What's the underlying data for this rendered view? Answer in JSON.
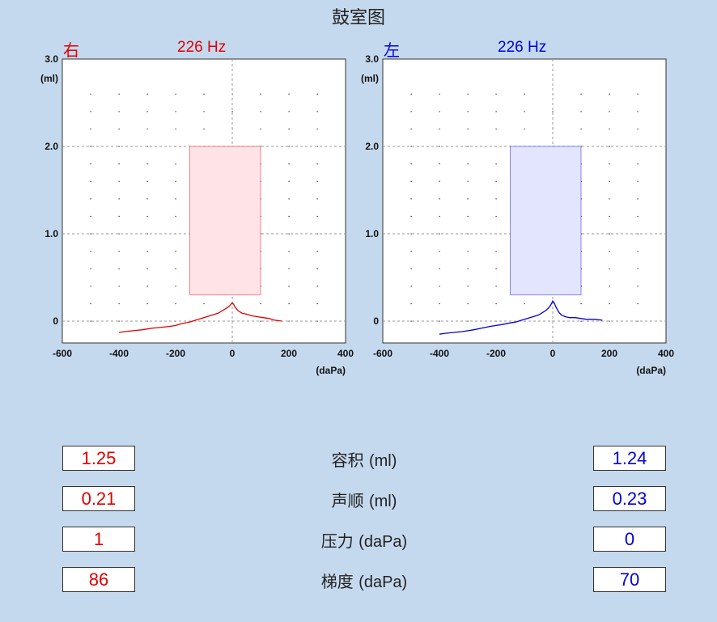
{
  "title": "鼓室图",
  "colors": {
    "right": "#e00000",
    "left": "#0000e0",
    "right_fill": "#ffe3e6",
    "left_fill": "#e3e5ff",
    "background": "#c5d9ee"
  },
  "chart_data": [
    {
      "type": "line",
      "ear": "右",
      "frequency": "226 Hz",
      "color": "#e00000",
      "xlabel": "(daPa)",
      "ylabel": "(ml)",
      "xlim": [
        -600,
        400
      ],
      "ylim": [
        -0.25,
        3.0
      ],
      "xticks": [
        "-600",
        "-400",
        "-200",
        "0",
        "200",
        "400"
      ],
      "yticks": [
        "3.0",
        "2.0",
        "1.0",
        "0"
      ],
      "normal_range": {
        "x": [
          -150,
          100
        ],
        "y": [
          0.3,
          2.0
        ]
      },
      "x": [
        -400,
        -380,
        -350,
        -320,
        -300,
        -280,
        -250,
        -220,
        -200,
        -180,
        -150,
        -130,
        -110,
        -90,
        -70,
        -50,
        -35,
        -25,
        -15,
        -8,
        -3,
        0,
        5,
        10,
        20,
        35,
        50,
        70,
        90,
        110,
        130,
        150,
        175
      ],
      "y": [
        -0.13,
        -0.12,
        -0.11,
        -0.1,
        -0.09,
        -0.08,
        -0.07,
        -0.06,
        -0.05,
        -0.03,
        -0.01,
        0.01,
        0.03,
        0.05,
        0.07,
        0.09,
        0.12,
        0.14,
        0.16,
        0.18,
        0.2,
        0.21,
        0.19,
        0.16,
        0.12,
        0.09,
        0.08,
        0.06,
        0.05,
        0.04,
        0.03,
        0.01,
        0.0
      ]
    },
    {
      "type": "line",
      "ear": "左",
      "frequency": "226 Hz",
      "color": "#0000e0",
      "xlabel": "(daPa)",
      "ylabel": "(ml)",
      "xlim": [
        -600,
        400
      ],
      "ylim": [
        -0.25,
        3.0
      ],
      "xticks": [
        "-600",
        "-400",
        "-200",
        "0",
        "200",
        "400"
      ],
      "yticks": [
        "3.0",
        "2.0",
        "1.0",
        "0"
      ],
      "normal_range": {
        "x": [
          -150,
          100
        ],
        "y": [
          0.3,
          2.0
        ]
      },
      "x": [
        -400,
        -380,
        -350,
        -320,
        -300,
        -280,
        -250,
        -220,
        -200,
        -180,
        -150,
        -130,
        -110,
        -90,
        -70,
        -50,
        -35,
        -25,
        -15,
        -8,
        -3,
        0,
        5,
        10,
        20,
        30,
        45,
        60,
        80,
        100,
        120,
        150,
        175
      ],
      "y": [
        -0.15,
        -0.14,
        -0.13,
        -0.12,
        -0.11,
        -0.1,
        -0.08,
        -0.06,
        -0.05,
        -0.04,
        -0.02,
        -0.01,
        0.01,
        0.03,
        0.05,
        0.07,
        0.1,
        0.12,
        0.15,
        0.18,
        0.21,
        0.23,
        0.21,
        0.17,
        0.11,
        0.07,
        0.05,
        0.04,
        0.04,
        0.03,
        0.02,
        0.02,
        0.01
      ]
    }
  ],
  "measurements": [
    {
      "label": "容积",
      "unit": "(ml)",
      "right": "1.25",
      "left": "1.24"
    },
    {
      "label": "声顺",
      "unit": "(ml)",
      "right": "0.21",
      "left": "0.23"
    },
    {
      "label": "压力",
      "unit": "(daPa)",
      "right": "1",
      "left": "0"
    },
    {
      "label": "梯度",
      "unit": "(daPa)",
      "right": "86",
      "left": "70"
    }
  ]
}
